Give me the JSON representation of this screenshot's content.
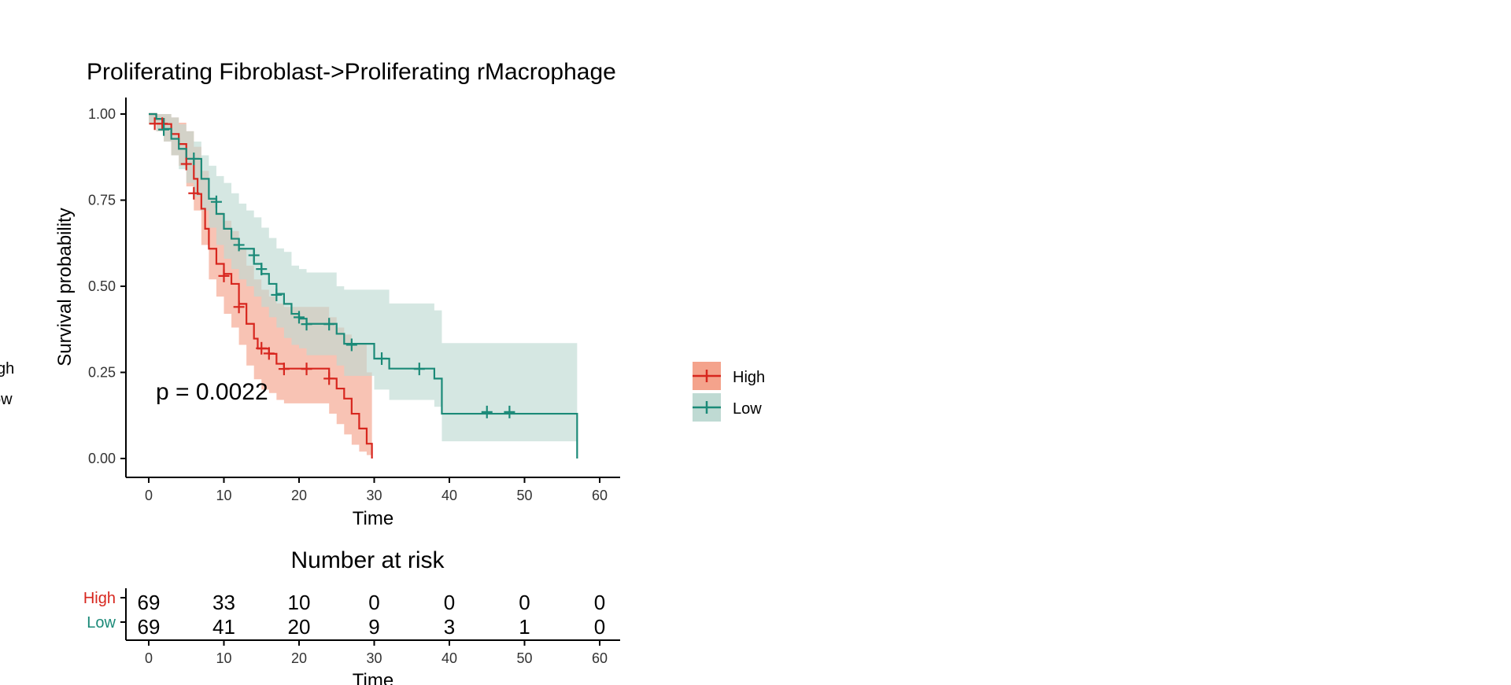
{
  "chart_data": {
    "type": "line",
    "subtype": "kaplan-meier",
    "title": "Proliferating Fibroblast->Proliferating rMacrophage",
    "xlabel": "Time",
    "ylabel": "Survival probability",
    "xlim": [
      0,
      60
    ],
    "ylim": [
      0,
      1
    ],
    "x_ticks": [
      "0",
      "10",
      "20",
      "30",
      "40",
      "50",
      "60"
    ],
    "y_ticks": [
      "0.00",
      "0.25",
      "0.50",
      "0.75",
      "1.00"
    ],
    "pvalue_text": "p = 0.0022",
    "legend_position": "right",
    "series": [
      {
        "name": "High",
        "color": "#D7261E",
        "fill": "#F4A38C",
        "steps": [
          [
            0,
            1.0
          ],
          [
            1,
            0.986
          ],
          [
            2,
            0.971
          ],
          [
            3,
            0.942
          ],
          [
            4,
            0.913
          ],
          [
            5,
            0.87
          ],
          [
            6,
            0.812
          ],
          [
            6.5,
            0.768
          ],
          [
            7,
            0.725
          ],
          [
            7.5,
            0.667
          ],
          [
            8,
            0.609
          ],
          [
            9,
            0.565
          ],
          [
            10,
            0.536
          ],
          [
            11,
            0.507
          ],
          [
            12,
            0.449
          ],
          [
            13,
            0.391
          ],
          [
            14,
            0.348
          ],
          [
            14.5,
            0.319
          ],
          [
            16,
            0.304
          ],
          [
            17,
            0.275
          ],
          [
            18,
            0.261
          ],
          [
            24,
            0.232
          ],
          [
            25,
            0.203
          ],
          [
            26,
            0.174
          ],
          [
            27,
            0.13
          ],
          [
            28,
            0.087
          ],
          [
            29,
            0.043
          ],
          [
            29.7,
            0.0
          ]
        ],
        "end_time": 29.7,
        "ci_upper": [
          [
            0,
            1.0
          ],
          [
            1,
            1.0
          ],
          [
            2,
            1.0
          ],
          [
            3,
            0.99
          ],
          [
            4,
            0.975
          ],
          [
            5,
            0.95
          ],
          [
            6,
            0.905
          ],
          [
            7,
            0.835
          ],
          [
            8,
            0.75
          ],
          [
            9,
            0.715
          ],
          [
            10,
            0.69
          ],
          [
            11,
            0.66
          ],
          [
            12,
            0.61
          ],
          [
            13,
            0.56
          ],
          [
            14,
            0.52
          ],
          [
            15,
            0.49
          ],
          [
            16,
            0.47
          ],
          [
            17,
            0.45
          ],
          [
            18,
            0.44
          ],
          [
            24,
            0.41
          ],
          [
            25,
            0.38
          ],
          [
            26,
            0.36
          ],
          [
            27,
            0.33
          ],
          [
            29,
            0.25
          ]
        ],
        "ci_lower": [
          [
            0,
            0.97
          ],
          [
            1,
            0.95
          ],
          [
            2,
            0.92
          ],
          [
            3,
            0.88
          ],
          [
            4,
            0.85
          ],
          [
            5,
            0.79
          ],
          [
            6,
            0.72
          ],
          [
            7,
            0.62
          ],
          [
            8,
            0.52
          ],
          [
            9,
            0.47
          ],
          [
            10,
            0.42
          ],
          [
            11,
            0.38
          ],
          [
            12,
            0.33
          ],
          [
            13,
            0.27
          ],
          [
            14,
            0.23
          ],
          [
            15,
            0.2
          ],
          [
            16,
            0.19
          ],
          [
            17,
            0.17
          ],
          [
            18,
            0.16
          ],
          [
            24,
            0.13
          ],
          [
            25,
            0.1
          ],
          [
            26,
            0.07
          ],
          [
            27,
            0.04
          ],
          [
            28,
            0.02
          ],
          [
            29,
            0.01
          ]
        ],
        "censor_times": [
          [
            0.8,
            0.972
          ],
          [
            1.8,
            0.972
          ],
          [
            5,
            0.855
          ],
          [
            6,
            0.77
          ],
          [
            10,
            0.53
          ],
          [
            12,
            0.44
          ],
          [
            15,
            0.32
          ],
          [
            16,
            0.305
          ],
          [
            18,
            0.26
          ],
          [
            21,
            0.26
          ],
          [
            24,
            0.232
          ]
        ]
      },
      {
        "name": "Low",
        "color": "#1B8A78",
        "fill": "#BFDAD3",
        "steps": [
          [
            0,
            1.0
          ],
          [
            1,
            0.986
          ],
          [
            2,
            0.957
          ],
          [
            3,
            0.928
          ],
          [
            4,
            0.899
          ],
          [
            5,
            0.87
          ],
          [
            7,
            0.812
          ],
          [
            8,
            0.754
          ],
          [
            9,
            0.71
          ],
          [
            10,
            0.667
          ],
          [
            11,
            0.638
          ],
          [
            12,
            0.609
          ],
          [
            14,
            0.565
          ],
          [
            15,
            0.536
          ],
          [
            16,
            0.507
          ],
          [
            17,
            0.478
          ],
          [
            18,
            0.449
          ],
          [
            19,
            0.42
          ],
          [
            20,
            0.406
          ],
          [
            21,
            0.391
          ],
          [
            25,
            0.362
          ],
          [
            26,
            0.333
          ],
          [
            30,
            0.29
          ],
          [
            32,
            0.261
          ],
          [
            38,
            0.232
          ],
          [
            39,
            0.13
          ],
          [
            57,
            0.0
          ]
        ],
        "end_time": 57,
        "ci_upper": [
          [
            0,
            1.0
          ],
          [
            2,
            1.0
          ],
          [
            3,
            0.99
          ],
          [
            4,
            0.97
          ],
          [
            5,
            0.95
          ],
          [
            6,
            0.92
          ],
          [
            7,
            0.88
          ],
          [
            8,
            0.85
          ],
          [
            9,
            0.82
          ],
          [
            10,
            0.8
          ],
          [
            11,
            0.77
          ],
          [
            12,
            0.74
          ],
          [
            13,
            0.72
          ],
          [
            14,
            0.7
          ],
          [
            15,
            0.67
          ],
          [
            16,
            0.64
          ],
          [
            17,
            0.61
          ],
          [
            18,
            0.6
          ],
          [
            19,
            0.56
          ],
          [
            20,
            0.55
          ],
          [
            21,
            0.54
          ],
          [
            25,
            0.5
          ],
          [
            26,
            0.49
          ],
          [
            30,
            0.49
          ],
          [
            32,
            0.45
          ],
          [
            38,
            0.43
          ],
          [
            39,
            0.335
          ]
        ],
        "ci_lower": [
          [
            0,
            0.97
          ],
          [
            1,
            0.95
          ],
          [
            2,
            0.92
          ],
          [
            3,
            0.88
          ],
          [
            4,
            0.84
          ],
          [
            5,
            0.8
          ],
          [
            6,
            0.76
          ],
          [
            7,
            0.72
          ],
          [
            8,
            0.67
          ],
          [
            9,
            0.62
          ],
          [
            10,
            0.58
          ],
          [
            11,
            0.55
          ],
          [
            12,
            0.52
          ],
          [
            13,
            0.5
          ],
          [
            14,
            0.47
          ],
          [
            15,
            0.44
          ],
          [
            16,
            0.41
          ],
          [
            17,
            0.38
          ],
          [
            18,
            0.35
          ],
          [
            19,
            0.33
          ],
          [
            20,
            0.32
          ],
          [
            21,
            0.3
          ],
          [
            25,
            0.27
          ],
          [
            26,
            0.24
          ],
          [
            30,
            0.2
          ],
          [
            32,
            0.17
          ],
          [
            38,
            0.15
          ],
          [
            39,
            0.05
          ]
        ],
        "censor_times": [
          [
            2,
            0.955
          ],
          [
            6,
            0.87
          ],
          [
            9,
            0.745
          ],
          [
            12,
            0.62
          ],
          [
            14,
            0.59
          ],
          [
            15,
            0.55
          ],
          [
            17,
            0.475
          ],
          [
            20,
            0.41
          ],
          [
            21,
            0.39
          ],
          [
            24,
            0.39
          ],
          [
            27,
            0.33
          ],
          [
            31,
            0.29
          ],
          [
            36,
            0.26
          ],
          [
            45,
            0.135
          ],
          [
            48,
            0.135
          ]
        ]
      }
    ],
    "risk_table": {
      "title": "Number at risk",
      "xlabel": "Time",
      "times": [
        "0",
        "10",
        "20",
        "30",
        "40",
        "50",
        "60"
      ],
      "rows": [
        {
          "label": "High",
          "color": "#D7261E",
          "values": [
            "69",
            "33",
            "10",
            "0",
            "0",
            "0",
            "0"
          ]
        },
        {
          "label": "Low",
          "color": "#1B8A78",
          "values": [
            "69",
            "41",
            "20",
            "9",
            "3",
            "1",
            "0"
          ]
        }
      ]
    },
    "clipped_left_legend": [
      "gh",
      "ow"
    ]
  }
}
